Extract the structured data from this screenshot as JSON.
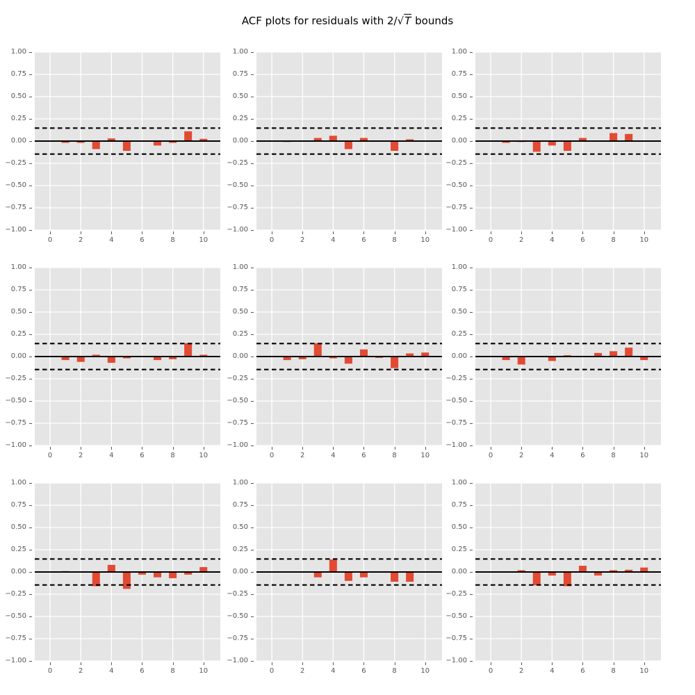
{
  "figure": {
    "title": {
      "prefix": "ACF plots for residuals with 2/",
      "radical": "√",
      "radicand": "T",
      "suffix": " bounds"
    }
  },
  "colors": {
    "figure_background": "#FFFFFF",
    "axes_background": "#E5E5E5",
    "grid": "#FFFFFF",
    "bar": "#E24A33",
    "line": "#000000",
    "tick_label": "#555555"
  },
  "chart_data": {
    "type": "bar",
    "title": "ACF plots for residuals with 2/√T bounds",
    "grid_layout": {
      "rows": 3,
      "cols": 3
    },
    "xlabel": "",
    "ylabel": "",
    "lags": [
      1,
      2,
      3,
      4,
      5,
      6,
      7,
      8,
      9,
      10
    ],
    "xlim": [
      -1,
      11.1
    ],
    "ylim": [
      -1,
      1
    ],
    "xtick_values": [
      0,
      2,
      4,
      6,
      8,
      10
    ],
    "xtick_labels": [
      "0",
      "2",
      "4",
      "6",
      "8",
      "10"
    ],
    "ytick_values": [
      1,
      0.75,
      0.5,
      0.25,
      0,
      -0.25,
      -0.5,
      -0.75,
      -1
    ],
    "ytick_labels": [
      "1.00",
      "0.75",
      "0.50",
      "0.25",
      "0.00",
      "−0.25",
      "−0.50",
      "−0.75",
      "−1.00"
    ],
    "grid": true,
    "zero_line": true,
    "bounds": {
      "value": 0.146,
      "style": "dashed",
      "formula": "2/√T"
    },
    "bar_width_units": 0.5,
    "legend": "none",
    "subplots": [
      {
        "row": 0,
        "col": 0,
        "acf": [
          -0.02,
          -0.02,
          -0.09,
          0.03,
          -0.11,
          0,
          -0.05,
          -0.02,
          0.11,
          0.025
        ]
      },
      {
        "row": 0,
        "col": 1,
        "acf": [
          -0.01,
          0,
          0.035,
          0.06,
          -0.09,
          0.035,
          0,
          -0.11,
          0.02,
          0
        ]
      },
      {
        "row": 0,
        "col": 2,
        "acf": [
          -0.02,
          -0.01,
          -0.12,
          -0.05,
          -0.11,
          0.035,
          0,
          0.09,
          0.08,
          0
        ]
      },
      {
        "row": 1,
        "col": 0,
        "acf": [
          -0.04,
          -0.06,
          0.02,
          -0.07,
          -0.02,
          0,
          -0.04,
          -0.03,
          0.15,
          0.02
        ]
      },
      {
        "row": 1,
        "col": 1,
        "acf": [
          -0.04,
          -0.03,
          0.15,
          -0.02,
          -0.08,
          0.08,
          -0.015,
          -0.13,
          0.035,
          0.045
        ]
      },
      {
        "row": 1,
        "col": 2,
        "acf": [
          -0.04,
          -0.09,
          0,
          -0.05,
          0.015,
          0,
          0.04,
          0.06,
          0.1,
          -0.04
        ]
      },
      {
        "row": 2,
        "col": 0,
        "acf": [
          0.01,
          0,
          -0.16,
          0.08,
          -0.19,
          -0.03,
          -0.06,
          -0.07,
          -0.03,
          0.055
        ]
      },
      {
        "row": 2,
        "col": 1,
        "acf": [
          0,
          0,
          -0.06,
          0.14,
          -0.1,
          -0.06,
          0,
          -0.11,
          -0.11,
          0
        ]
      },
      {
        "row": 2,
        "col": 2,
        "acf": [
          0,
          0.02,
          -0.15,
          -0.04,
          -0.16,
          0.07,
          -0.04,
          0.02,
          0.025,
          0.05
        ]
      }
    ]
  }
}
